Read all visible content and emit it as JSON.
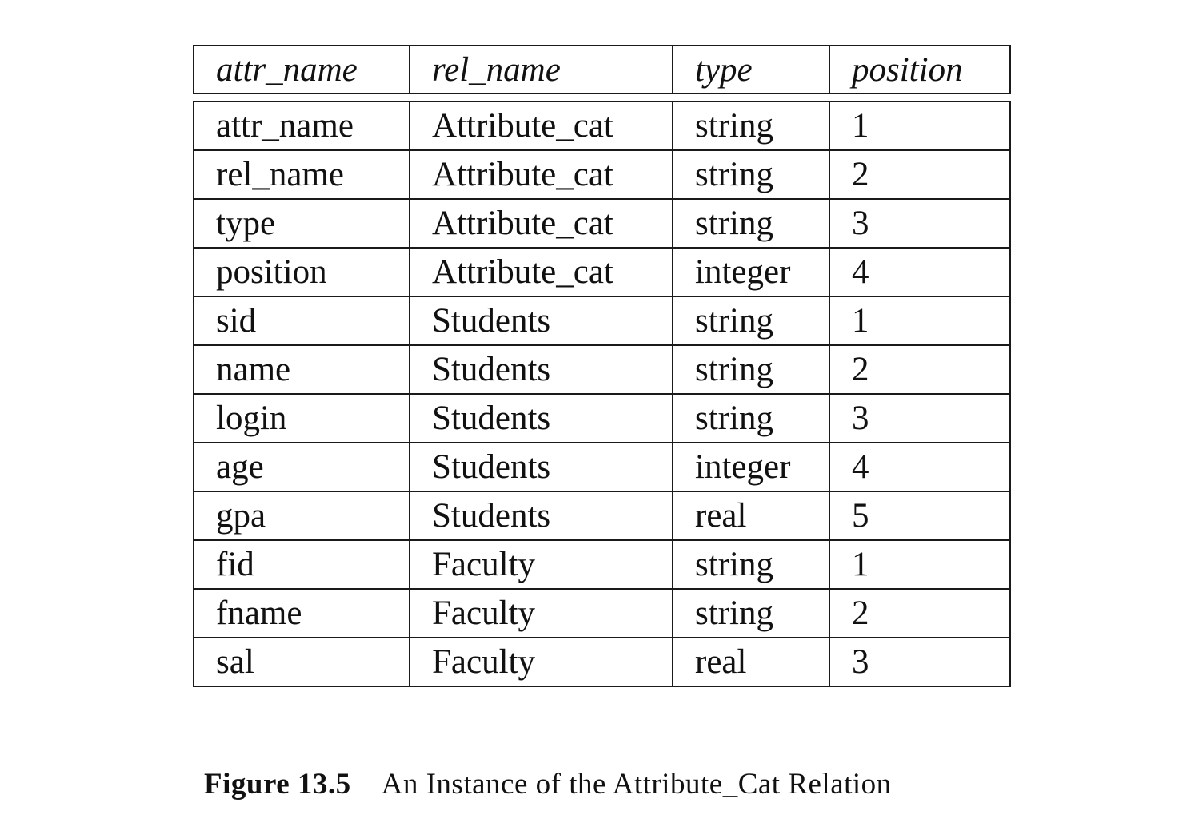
{
  "table": {
    "headers": [
      "attr_name",
      "rel_name",
      "type",
      "position"
    ],
    "rows": [
      [
        "attr_name",
        "Attribute_cat",
        "string",
        "1"
      ],
      [
        "rel_name",
        "Attribute_cat",
        "string",
        "2"
      ],
      [
        "type",
        "Attribute_cat",
        "string",
        "3"
      ],
      [
        "position",
        "Attribute_cat",
        "integer",
        "4"
      ],
      [
        "sid",
        "Students",
        "string",
        "1"
      ],
      [
        "name",
        "Students",
        "string",
        "2"
      ],
      [
        "login",
        "Students",
        "string",
        "3"
      ],
      [
        "age",
        "Students",
        "integer",
        "4"
      ],
      [
        "gpa",
        "Students",
        "real",
        "5"
      ],
      [
        "fid",
        "Faculty",
        "string",
        "1"
      ],
      [
        "fname",
        "Faculty",
        "string",
        "2"
      ],
      [
        "sal",
        "Faculty",
        "real",
        "3"
      ]
    ]
  },
  "caption": {
    "label": "Figure 13.5",
    "text": "An Instance of the Attribute_Cat Relation"
  }
}
